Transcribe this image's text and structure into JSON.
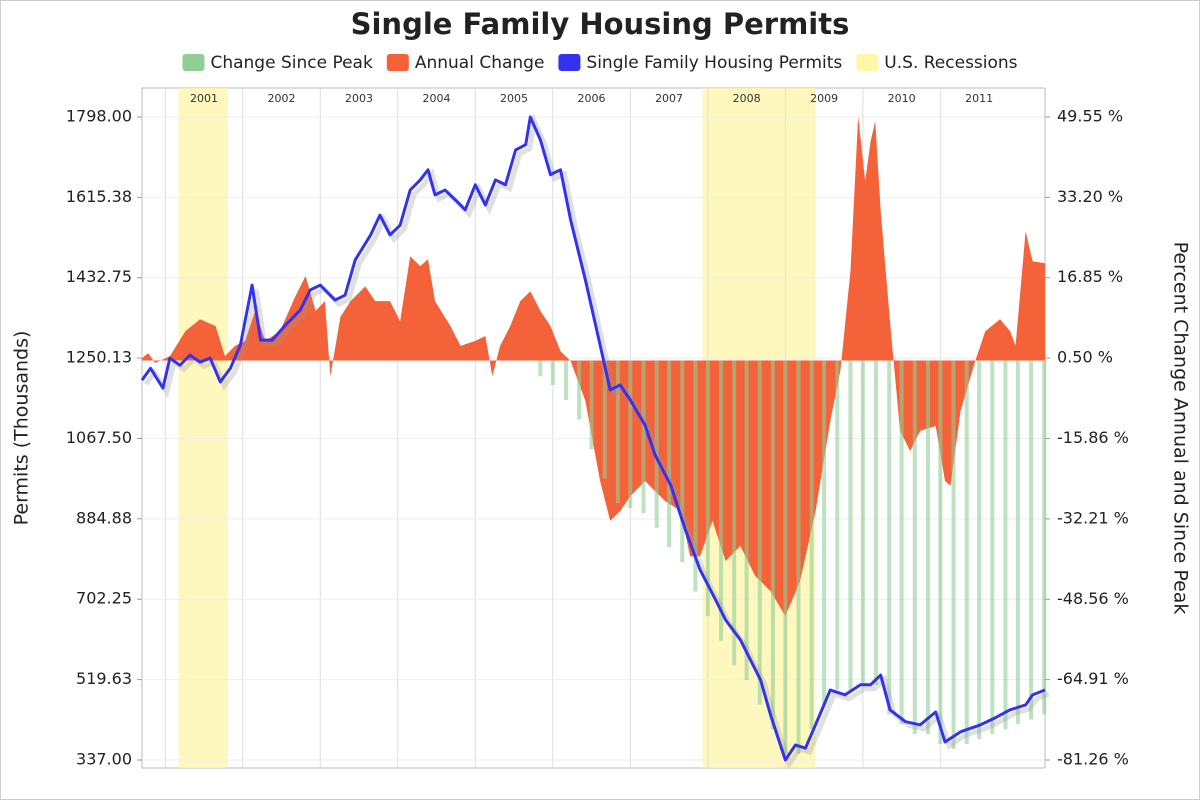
{
  "chart_data": {
    "type": "combo",
    "title": "Single Family Housing Permits",
    "ylabel": "Permits (Thousands)",
    "y2label": "Percent Change Annual and Since Peak",
    "xlim": [
      2000.7,
      2012.35
    ],
    "xticks": [
      2001,
      2002,
      2003,
      2004,
      2005,
      2006,
      2007,
      2008,
      2009,
      2010,
      2011
    ],
    "ylim": [
      318.8,
      1863.9
    ],
    "yticks": [
      {
        "value": 337,
        "label": "337.00"
      },
      519.63,
      702.25,
      884.88,
      {
        "value": 1067.5,
        "label": "1067.50"
      },
      1250.13,
      1432.75,
      1615.38,
      {
        "value": 1798,
        "label": "1798.00"
      }
    ],
    "y2lim": [
      -82.89,
      55.45
    ],
    "y2ticks": [
      {
        "value": -81.26,
        "label": "-81.26 %"
      },
      {
        "value": -64.91,
        "label": "-64.91 %"
      },
      {
        "value": -48.56,
        "label": "-48.56 %"
      },
      {
        "value": -32.21,
        "label": "-32.21 %"
      },
      {
        "value": -15.86,
        "label": "-15.86 %"
      },
      {
        "value": 0.5,
        "label": "0.50 %"
      },
      {
        "value": 16.85,
        "label": "16.85 %"
      },
      {
        "value": 33.2,
        "label": "33.20 %"
      },
      {
        "value": 49.55,
        "label": "49.55 %"
      }
    ],
    "grid": true,
    "series": [
      {
        "name": "Change Since Peak",
        "type": "bar",
        "axis": "y2",
        "color": "#8fcf95",
        "x": [
          2005.84,
          2006.0,
          2006.17,
          2006.34,
          2006.5,
          2006.67,
          2006.84,
          2007.0,
          2007.17,
          2007.34,
          2007.5,
          2007.67,
          2007.84,
          2008.0,
          2008.17,
          2008.34,
          2008.5,
          2008.67,
          2008.84,
          2009.0,
          2009.17,
          2009.34,
          2009.5,
          2009.67,
          2009.84,
          2010.0,
          2010.17,
          2010.34,
          2010.5,
          2010.67,
          2010.84,
          2011.0,
          2011.17,
          2011.34,
          2011.5,
          2011.67,
          2011.84,
          2012.0,
          2012.17,
          2012.34
        ],
        "values": [
          -3.2,
          -5,
          -8,
          -12,
          -18,
          -24,
          -29,
          -30,
          -31,
          -34,
          -38,
          -41,
          -47,
          -52,
          -57,
          -62,
          -65,
          -70,
          -75,
          -80,
          -80,
          -75,
          -70,
          -67,
          -67,
          -66,
          -66,
          -72,
          -74,
          -76,
          -76,
          -78,
          -79,
          -78,
          -77,
          -76,
          -75,
          -74,
          -73,
          -72
        ]
      },
      {
        "name": "Annual Change",
        "type": "area",
        "axis": "y2",
        "color": "#f4623a",
        "x": [
          2000.7,
          2000.78,
          2000.87,
          2001.06,
          2001.26,
          2001.45,
          2001.65,
          2001.77,
          2001.9,
          2002.03,
          2002.16,
          2002.29,
          2002.48,
          2002.68,
          2002.81,
          2002.94,
          2003.06,
          2003.13,
          2003.26,
          2003.39,
          2003.58,
          2003.71,
          2003.9,
          2004.03,
          2004.16,
          2004.29,
          2004.39,
          2004.48,
          2004.68,
          2004.81,
          2005.0,
          2005.13,
          2005.22,
          2005.32,
          2005.45,
          2005.58,
          2005.71,
          2005.84,
          2005.97,
          2006.1,
          2006.23,
          2006.42,
          2006.61,
          2006.74,
          2006.87,
          2007.0,
          2007.19,
          2007.32,
          2007.45,
          2007.65,
          2007.77,
          2007.9,
          2008.06,
          2008.23,
          2008.42,
          2008.61,
          2008.81,
          2009.0,
          2009.19,
          2009.39,
          2009.58,
          2009.71,
          2009.84,
          2009.94,
          2010.03,
          2010.1,
          2010.16,
          2010.23,
          2010.35,
          2010.48,
          2010.61,
          2010.74,
          2010.94,
          2011.06,
          2011.13,
          2011.26,
          2011.45,
          2011.58,
          2011.77,
          2011.9,
          2011.97,
          2012.1,
          2012.19,
          2012.35
        ],
        "values": [
          0.5,
          1.5,
          -0.5,
          0.9,
          6.0,
          8.4,
          7.0,
          0.9,
          3.0,
          4.0,
          10.1,
          4.0,
          6.0,
          13.1,
          17.2,
          10.1,
          12.1,
          -3.2,
          8.9,
          12.1,
          15.1,
          12.1,
          12.1,
          8.0,
          21.2,
          19.2,
          20.6,
          12.1,
          7.0,
          3.0,
          4.0,
          5.0,
          -3.2,
          3.0,
          7.0,
          12.1,
          14.1,
          10.1,
          7.0,
          1.9,
          -0.1,
          -8.2,
          -24.5,
          -32.6,
          -30.6,
          -27.6,
          -24.5,
          -26.6,
          -28.6,
          -30.6,
          -39.8,
          -39.8,
          -32.6,
          -40.8,
          -37.7,
          -43.8,
          -46.9,
          -52.0,
          -44.9,
          -30.6,
          -12.3,
          -2.1,
          18.2,
          49.7,
          36.5,
          44.6,
          48.7,
          30.4,
          8.0,
          -14.3,
          -18.4,
          -14.3,
          -13.3,
          -24.5,
          -25.5,
          -10.3,
          -0.1,
          6.0,
          8.4,
          6.0,
          3.0,
          26.3,
          20.2,
          19.8
        ]
      },
      {
        "name": "Single Family Housing Permits",
        "type": "line",
        "color": "#3333ee",
        "x": [
          2000.7,
          2000.81,
          2000.97,
          2001.06,
          2001.19,
          2001.32,
          2001.45,
          2001.58,
          2001.71,
          2001.84,
          2001.97,
          2002.12,
          2002.23,
          2002.38,
          2002.55,
          2002.74,
          2002.87,
          2003.0,
          2003.19,
          2003.32,
          2003.45,
          2003.65,
          2003.77,
          2003.9,
          2004.03,
          2004.16,
          2004.29,
          2004.39,
          2004.48,
          2004.61,
          2004.74,
          2004.87,
          2005.0,
          2005.13,
          2005.26,
          2005.39,
          2005.52,
          2005.65,
          2005.71,
          2005.84,
          2005.97,
          2006.1,
          2006.23,
          2006.42,
          2006.61,
          2006.74,
          2006.87,
          2007.0,
          2007.19,
          2007.32,
          2007.52,
          2007.71,
          2007.9,
          2008.1,
          2008.23,
          2008.42,
          2008.68,
          2008.81,
          2009.0,
          2009.13,
          2009.26,
          2009.39,
          2009.58,
          2009.77,
          2009.97,
          2010.1,
          2010.23,
          2010.35,
          2010.55,
          2010.74,
          2010.94,
          2011.06,
          2011.26,
          2011.52,
          2011.71,
          2011.9,
          2012.1,
          2012.19,
          2012.35
        ],
        "values": [
          1200,
          1227,
          1182,
          1250,
          1234,
          1257,
          1241,
          1250,
          1196,
          1227,
          1280,
          1416,
          1291,
          1291,
          1325,
          1359,
          1405,
          1416,
          1382,
          1393,
          1473,
          1530,
          1575,
          1530,
          1552,
          1632,
          1655,
          1678,
          1621,
          1632,
          1610,
          1587,
          1644,
          1598,
          1655,
          1644,
          1723,
          1735,
          1798,
          1746,
          1667,
          1678,
          1564,
          1428,
          1280,
          1178,
          1189,
          1155,
          1098,
          1030,
          962,
          860,
          769,
          701,
          655,
          610,
          519,
          439,
          337,
          371,
          364,
          417,
          496,
          485,
          508,
          508,
          530,
          451,
          424,
          417,
          446,
          378,
          401,
          417,
          433,
          451,
          462,
          485,
          496
        ]
      },
      {
        "name": "U.S. Recessions",
        "type": "band",
        "color": "#fff6a8",
        "ranges": [
          [
            2001.17,
            2001.81
          ],
          [
            2007.93,
            2009.39
          ]
        ]
      }
    ]
  }
}
